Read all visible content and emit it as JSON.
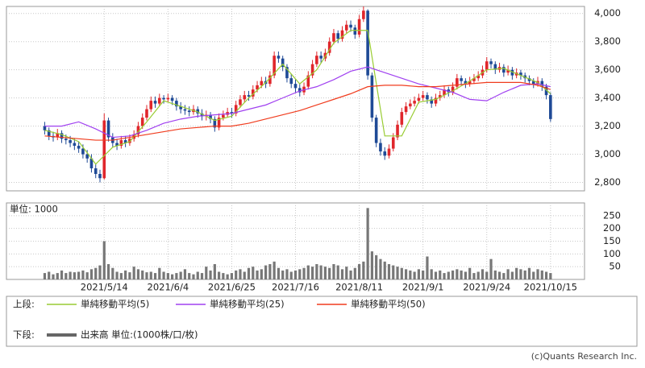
{
  "chart_data": [
    {
      "type": "candlestick",
      "up_color": "#e0262b",
      "down_color": "#1f4a96",
      "open": [
        3200,
        3170,
        3130,
        3120,
        3150,
        3110,
        3100,
        3080,
        3060,
        3040,
        3000,
        2970,
        2900,
        2860,
        2830,
        3240,
        3120,
        3080,
        3060,
        3100,
        3080,
        3110,
        3140,
        3200,
        3260,
        3320,
        3380,
        3360,
        3400,
        3390,
        3400,
        3380,
        3340,
        3320,
        3310,
        3300,
        3320,
        3290,
        3270,
        3280,
        3250,
        3190,
        3260,
        3280,
        3300,
        3290,
        3350,
        3390,
        3420,
        3410,
        3460,
        3490,
        3520,
        3500,
        3560,
        3700,
        3680,
        3620,
        3540,
        3500,
        3470,
        3440,
        3480,
        3560,
        3640,
        3700,
        3680,
        3720,
        3800,
        3860,
        3820,
        3880,
        3920,
        3900,
        3850,
        3960,
        4020,
        3560,
        3260,
        3080,
        3020,
        2990,
        3040,
        3120,
        3210,
        3300,
        3340,
        3360,
        3380,
        3400,
        3420,
        3390,
        3360,
        3400,
        3420,
        3460,
        3440,
        3480,
        3540,
        3520,
        3500,
        3520,
        3540,
        3560,
        3600,
        3660,
        3640,
        3600,
        3620,
        3580,
        3600,
        3560,
        3580,
        3560,
        3540,
        3520,
        3500,
        3520,
        3480,
        3420
      ],
      "high": [
        3230,
        3190,
        3160,
        3180,
        3170,
        3140,
        3130,
        3110,
        3090,
        3070,
        3030,
        3000,
        2930,
        2890,
        3290,
        3260,
        3150,
        3110,
        3130,
        3130,
        3140,
        3170,
        3230,
        3290,
        3350,
        3410,
        3410,
        3430,
        3420,
        3430,
        3420,
        3400,
        3370,
        3350,
        3340,
        3350,
        3340,
        3320,
        3310,
        3300,
        3270,
        3290,
        3310,
        3330,
        3330,
        3380,
        3420,
        3450,
        3450,
        3490,
        3520,
        3550,
        3550,
        3590,
        3730,
        3730,
        3700,
        3640,
        3570,
        3530,
        3500,
        3510,
        3590,
        3670,
        3730,
        3730,
        3750,
        3830,
        3890,
        3880,
        3910,
        3950,
        3950,
        3920,
        3990,
        4050,
        4030,
        3580,
        3280,
        3110,
        3050,
        3070,
        3150,
        3240,
        3330,
        3370,
        3390,
        3410,
        3430,
        3450,
        3440,
        3410,
        3430,
        3450,
        3490,
        3480,
        3510,
        3570,
        3560,
        3540,
        3550,
        3570,
        3590,
        3630,
        3690,
        3680,
        3660,
        3650,
        3640,
        3630,
        3620,
        3610,
        3600,
        3580,
        3560,
        3540,
        3550,
        3540,
        3500,
        3440
      ],
      "low": [
        3140,
        3100,
        3090,
        3100,
        3080,
        3070,
        3050,
        3030,
        3010,
        2970,
        2940,
        2870,
        2830,
        2800,
        2820,
        3090,
        3050,
        3030,
        3040,
        3050,
        3060,
        3090,
        3120,
        3180,
        3240,
        3300,
        3330,
        3340,
        3360,
        3370,
        3350,
        3310,
        3290,
        3280,
        3270,
        3280,
        3260,
        3240,
        3240,
        3220,
        3160,
        3170,
        3240,
        3260,
        3260,
        3270,
        3330,
        3370,
        3380,
        3390,
        3440,
        3470,
        3470,
        3480,
        3540,
        3650,
        3590,
        3510,
        3470,
        3440,
        3410,
        3420,
        3460,
        3540,
        3620,
        3650,
        3660,
        3700,
        3780,
        3790,
        3800,
        3860,
        3870,
        3820,
        3830,
        3940,
        3530,
        3230,
        3050,
        2990,
        2960,
        2970,
        3020,
        3100,
        3190,
        3280,
        3320,
        3340,
        3360,
        3380,
        3360,
        3330,
        3340,
        3380,
        3400,
        3410,
        3420,
        3460,
        3490,
        3470,
        3480,
        3500,
        3520,
        3540,
        3580,
        3610,
        3570,
        3580,
        3550,
        3560,
        3530,
        3540,
        3530,
        3510,
        3490,
        3470,
        3480,
        3450,
        3390,
        3230
      ],
      "close": [
        3170,
        3130,
        3120,
        3150,
        3110,
        3100,
        3080,
        3060,
        3040,
        3000,
        2970,
        2900,
        2860,
        2830,
        3240,
        3120,
        3080,
        3060,
        3100,
        3080,
        3110,
        3140,
        3200,
        3260,
        3320,
        3380,
        3360,
        3400,
        3390,
        3400,
        3380,
        3340,
        3320,
        3310,
        3300,
        3320,
        3290,
        3270,
        3280,
        3250,
        3190,
        3260,
        3280,
        3300,
        3290,
        3350,
        3390,
        3420,
        3410,
        3460,
        3490,
        3520,
        3500,
        3560,
        3700,
        3680,
        3620,
        3540,
        3500,
        3470,
        3440,
        3480,
        3560,
        3640,
        3700,
        3680,
        3720,
        3800,
        3860,
        3820,
        3880,
        3920,
        3900,
        3850,
        3960,
        4020,
        3560,
        3260,
        3080,
        3020,
        2990,
        3040,
        3120,
        3210,
        3300,
        3340,
        3360,
        3380,
        3400,
        3420,
        3390,
        3360,
        3400,
        3420,
        3460,
        3440,
        3480,
        3540,
        3520,
        3500,
        3520,
        3540,
        3560,
        3600,
        3660,
        3640,
        3600,
        3620,
        3580,
        3600,
        3560,
        3580,
        3560,
        3540,
        3520,
        3500,
        3520,
        3480,
        3420,
        3250
      ],
      "series": [
        {
          "name": "単純移動平均(5)",
          "color": "#99cc33",
          "x": [
            0,
            4,
            8,
            12,
            16,
            20,
            24,
            28,
            32,
            36,
            40,
            44,
            48,
            52,
            56,
            60,
            64,
            68,
            72,
            76,
            80,
            84,
            88,
            92,
            96,
            100,
            104,
            108,
            112,
            116,
            119
          ],
          "values": [
            3170,
            3140,
            3090,
            2930,
            3050,
            3090,
            3230,
            3380,
            3340,
            3300,
            3240,
            3270,
            3400,
            3510,
            3640,
            3500,
            3600,
            3790,
            3880,
            3880,
            3130,
            3130,
            3370,
            3390,
            3450,
            3520,
            3600,
            3610,
            3560,
            3510,
            3430
          ]
        },
        {
          "name": "単純移動平均(25)",
          "color": "#a040f0",
          "x": [
            0,
            4,
            8,
            12,
            16,
            20,
            24,
            28,
            32,
            36,
            40,
            44,
            48,
            52,
            56,
            60,
            64,
            68,
            72,
            76,
            80,
            84,
            88,
            92,
            96,
            100,
            104,
            108,
            112,
            116,
            119
          ],
          "values": [
            3200,
            3200,
            3230,
            3180,
            3120,
            3130,
            3170,
            3220,
            3250,
            3270,
            3280,
            3290,
            3320,
            3350,
            3400,
            3450,
            3480,
            3530,
            3590,
            3620,
            3580,
            3540,
            3500,
            3470,
            3440,
            3390,
            3380,
            3440,
            3490,
            3500,
            3480
          ]
        },
        {
          "name": "単純移動平均(50)",
          "color": "#f03c1e",
          "x": [
            0,
            4,
            8,
            12,
            16,
            20,
            24,
            28,
            32,
            36,
            40,
            44,
            48,
            52,
            56,
            60,
            64,
            68,
            72,
            76,
            80,
            84,
            88,
            92,
            96,
            100,
            104,
            108,
            112,
            116,
            119
          ],
          "values": [
            3130,
            3120,
            3110,
            3100,
            3100,
            3120,
            3140,
            3160,
            3180,
            3190,
            3200,
            3200,
            3220,
            3250,
            3280,
            3310,
            3350,
            3390,
            3430,
            3480,
            3490,
            3490,
            3480,
            3480,
            3490,
            3500,
            3510,
            3510,
            3510,
            3490,
            3460
          ]
        }
      ],
      "legend_label": "上段:",
      "xlim": [
        -9,
        127
      ],
      "ylim": [
        2740,
        4050
      ],
      "yticks": [
        {
          "value": 2800,
          "label": "2,800"
        },
        {
          "value": 3000,
          "label": "3,000"
        },
        {
          "value": 3200,
          "label": "3,200"
        },
        {
          "value": 3400,
          "label": "3,400"
        },
        {
          "value": 3600,
          "label": "3,600"
        },
        {
          "value": 3800,
          "label": "3,800"
        },
        {
          "value": 4000,
          "label": "4,000"
        }
      ],
      "grid": true
    },
    {
      "type": "bar",
      "color": "#777777",
      "unit_label": "単位: 1000",
      "legend_label": "下段:",
      "name": "出来高 単位:(1000株/口/枚)",
      "values": [
        25,
        30,
        20,
        25,
        35,
        25,
        30,
        28,
        30,
        35,
        28,
        40,
        45,
        55,
        150,
        60,
        45,
        30,
        25,
        35,
        28,
        50,
        40,
        35,
        28,
        30,
        25,
        45,
        30,
        25,
        20,
        25,
        30,
        40,
        25,
        20,
        30,
        25,
        50,
        35,
        60,
        30,
        25,
        20,
        25,
        35,
        40,
        30,
        45,
        50,
        35,
        40,
        55,
        60,
        70,
        45,
        35,
        40,
        30,
        35,
        40,
        45,
        55,
        50,
        60,
        55,
        50,
        45,
        60,
        55,
        40,
        50,
        35,
        45,
        60,
        70,
        280,
        110,
        95,
        80,
        70,
        60,
        55,
        50,
        45,
        40,
        35,
        30,
        40,
        35,
        90,
        40,
        30,
        35,
        25,
        30,
        35,
        40,
        35,
        30,
        45,
        25,
        30,
        40,
        30,
        80,
        35,
        30,
        25,
        40,
        30,
        45,
        40,
        35,
        45,
        30,
        40,
        35,
        30,
        25
      ],
      "xlim": [
        -9,
        127
      ],
      "ylim": [
        0,
        300
      ],
      "yticks": [
        50,
        100,
        150,
        200,
        250
      ],
      "xticks": [
        {
          "value": 14,
          "label": "2021/5/14"
        },
        {
          "value": 29,
          "label": "2021/6/4"
        },
        {
          "value": 44,
          "label": "2021/6/25"
        },
        {
          "value": 59,
          "label": "2021/7/16"
        },
        {
          "value": 74,
          "label": "2021/8/11"
        },
        {
          "value": 89,
          "label": "2021/9/1"
        },
        {
          "value": 104,
          "label": "2021/9/24"
        },
        {
          "value": 119,
          "label": "2021/10/15"
        }
      ],
      "grid": true
    }
  ],
  "credit": "(c)Quants Research Inc."
}
